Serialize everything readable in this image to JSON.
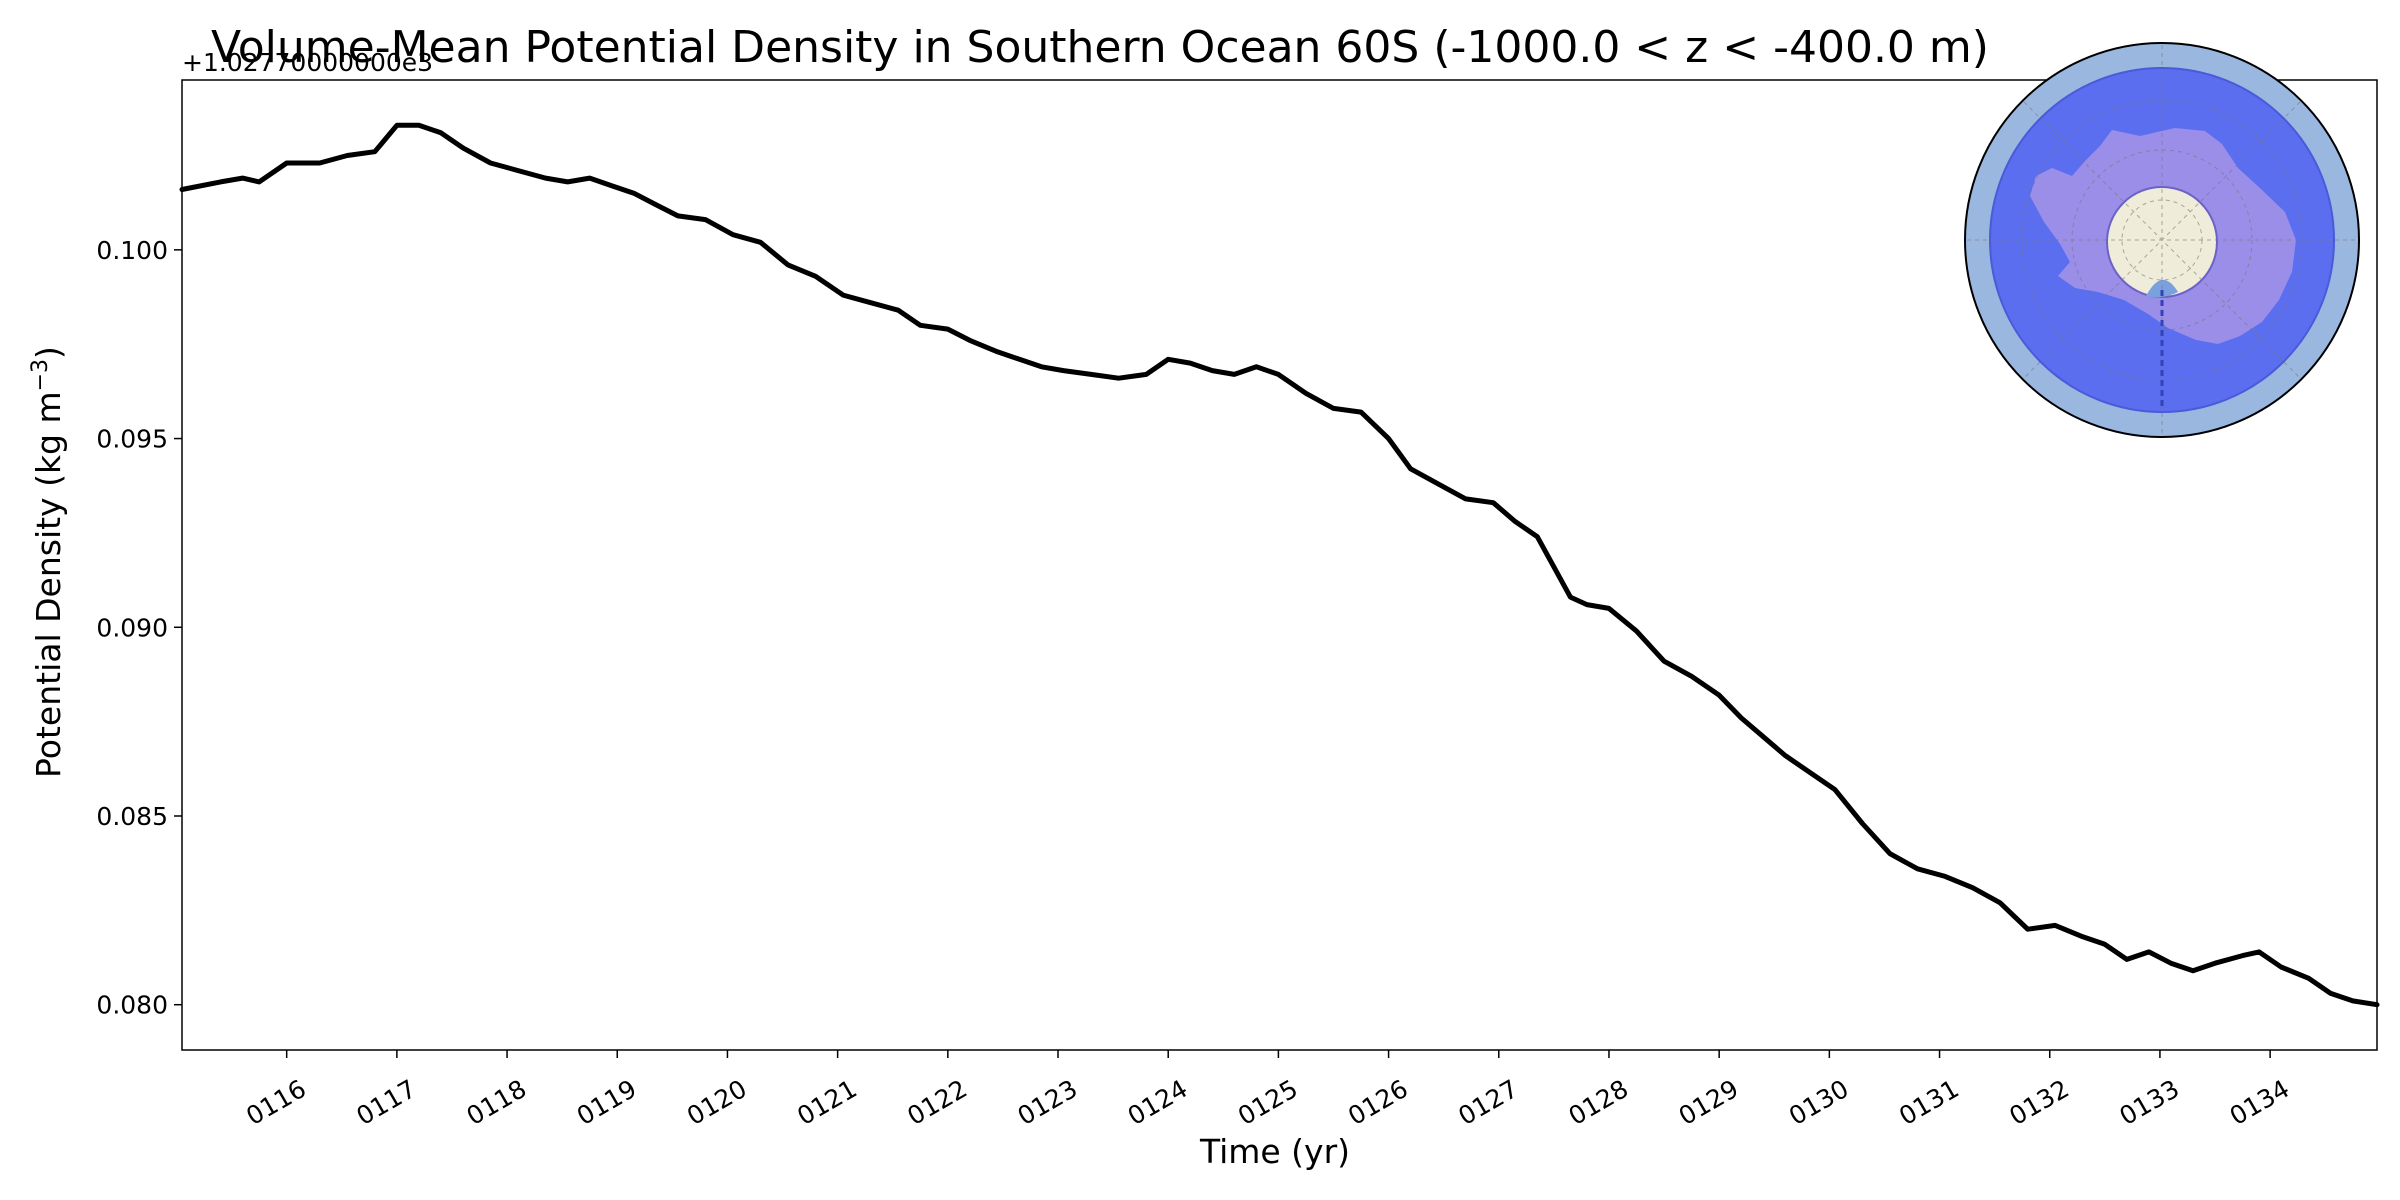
{
  "chart_data": {
    "type": "line",
    "title": "Volume-Mean Potential Density in Southern Ocean 60S (-1000.0 < z < -400.0 m)",
    "xlabel": "Time (yr)",
    "ylabel": "Potential Density (kg m",
    "ylabel_sup": "−3",
    "ylabel_tail": ")",
    "y_offset_label": "+1.02770000000e3",
    "xlim": [
      115.05,
      134.97
    ],
    "ylim": [
      0.0788,
      0.1045
    ],
    "y_ticks": [
      {
        "value": 0.08,
        "label": "0.080"
      },
      {
        "value": 0.085,
        "label": "0.085"
      },
      {
        "value": 0.09,
        "label": "0.090"
      },
      {
        "value": 0.095,
        "label": "0.095"
      },
      {
        "value": 0.1,
        "label": "0.100"
      }
    ],
    "x_ticks": [
      {
        "value": 116,
        "label": "0116"
      },
      {
        "value": 117,
        "label": "0117"
      },
      {
        "value": 118,
        "label": "0118"
      },
      {
        "value": 119,
        "label": "0119"
      },
      {
        "value": 120,
        "label": "0120"
      },
      {
        "value": 121,
        "label": "0121"
      },
      {
        "value": 122,
        "label": "0122"
      },
      {
        "value": 123,
        "label": "0123"
      },
      {
        "value": 124,
        "label": "0124"
      },
      {
        "value": 125,
        "label": "0125"
      },
      {
        "value": 126,
        "label": "0126"
      },
      {
        "value": 127,
        "label": "0127"
      },
      {
        "value": 128,
        "label": "0128"
      },
      {
        "value": 129,
        "label": "0129"
      },
      {
        "value": 130,
        "label": "0130"
      },
      {
        "value": 131,
        "label": "0131"
      },
      {
        "value": 132,
        "label": "0132"
      },
      {
        "value": 133,
        "label": "0133"
      },
      {
        "value": 134,
        "label": "0134"
      }
    ],
    "grid": false,
    "series": [
      {
        "color": "#000000",
        "points": [
          [
            115.05,
            0.1016
          ],
          [
            115.4,
            0.1018
          ],
          [
            115.6,
            0.1019
          ],
          [
            115.75,
            0.1018
          ],
          [
            116.0,
            0.1023
          ],
          [
            116.3,
            0.1023
          ],
          [
            116.55,
            0.1025
          ],
          [
            116.8,
            0.1026
          ],
          [
            117.0,
            0.1033
          ],
          [
            117.2,
            0.1033
          ],
          [
            117.4,
            0.1031
          ],
          [
            117.6,
            0.1027
          ],
          [
            117.85,
            0.1023
          ],
          [
            118.1,
            0.1021
          ],
          [
            118.35,
            0.1019
          ],
          [
            118.55,
            0.1018
          ],
          [
            118.75,
            0.1019
          ],
          [
            118.95,
            0.1017
          ],
          [
            119.15,
            0.1015
          ],
          [
            119.35,
            0.1012
          ],
          [
            119.55,
            0.1009
          ],
          [
            119.8,
            0.1008
          ],
          [
            120.05,
            0.1004
          ],
          [
            120.3,
            0.1002
          ],
          [
            120.55,
            0.0996
          ],
          [
            120.8,
            0.0993
          ],
          [
            121.05,
            0.0988
          ],
          [
            121.3,
            0.0986
          ],
          [
            121.55,
            0.0984
          ],
          [
            121.75,
            0.098
          ],
          [
            122.0,
            0.0979
          ],
          [
            122.2,
            0.0976
          ],
          [
            122.45,
            0.0973
          ],
          [
            122.65,
            0.0971
          ],
          [
            122.85,
            0.0969
          ],
          [
            123.05,
            0.0968
          ],
          [
            123.3,
            0.0967
          ],
          [
            123.55,
            0.0966
          ],
          [
            123.8,
            0.0967
          ],
          [
            124.0,
            0.0971
          ],
          [
            124.2,
            0.097
          ],
          [
            124.4,
            0.0968
          ],
          [
            124.6,
            0.0967
          ],
          [
            124.8,
            0.0969
          ],
          [
            125.0,
            0.0967
          ],
          [
            125.25,
            0.0962
          ],
          [
            125.5,
            0.0958
          ],
          [
            125.75,
            0.0957
          ],
          [
            126.0,
            0.095
          ],
          [
            126.2,
            0.0942
          ],
          [
            126.45,
            0.0938
          ],
          [
            126.7,
            0.0934
          ],
          [
            126.95,
            0.0933
          ],
          [
            127.15,
            0.0928
          ],
          [
            127.35,
            0.0924
          ],
          [
            127.5,
            0.0916
          ],
          [
            127.65,
            0.0908
          ],
          [
            127.8,
            0.0906
          ],
          [
            128.0,
            0.0905
          ],
          [
            128.25,
            0.0899
          ],
          [
            128.5,
            0.0891
          ],
          [
            128.75,
            0.0887
          ],
          [
            129.0,
            0.0882
          ],
          [
            129.2,
            0.0876
          ],
          [
            129.4,
            0.0871
          ],
          [
            129.6,
            0.0866
          ],
          [
            129.8,
            0.0862
          ],
          [
            130.05,
            0.0857
          ],
          [
            130.3,
            0.0848
          ],
          [
            130.55,
            0.084
          ],
          [
            130.8,
            0.0836
          ],
          [
            131.05,
            0.0834
          ],
          [
            131.3,
            0.0831
          ],
          [
            131.55,
            0.0827
          ],
          [
            131.8,
            0.082
          ],
          [
            132.05,
            0.0821
          ],
          [
            132.3,
            0.0818
          ],
          [
            132.5,
            0.0816
          ],
          [
            132.7,
            0.0812
          ],
          [
            132.9,
            0.0814
          ],
          [
            133.1,
            0.0811
          ],
          [
            133.3,
            0.0809
          ],
          [
            133.5,
            0.0811
          ],
          [
            133.75,
            0.0813
          ],
          [
            133.9,
            0.0814
          ],
          [
            134.1,
            0.081
          ],
          [
            134.35,
            0.0807
          ],
          [
            134.55,
            0.0803
          ],
          [
            134.75,
            0.0801
          ],
          [
            134.97,
            0.08
          ]
        ]
      }
    ]
  },
  "inset_map": {
    "ocean_band_color": "#9ab7e0",
    "region_color": "#5b6ef0",
    "land_color": "#9a8ee8",
    "pole_cap_color": "#efecd9"
  }
}
